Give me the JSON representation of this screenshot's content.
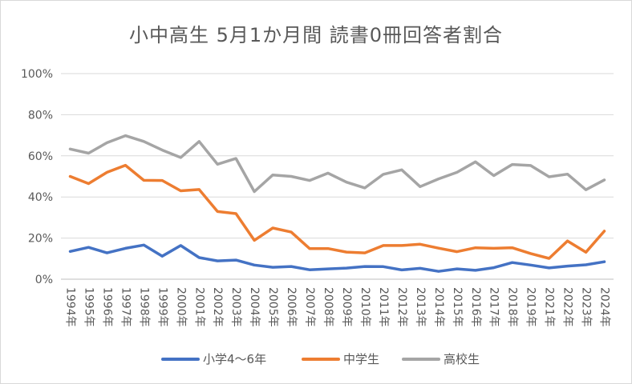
{
  "chart_data": {
    "type": "line",
    "title": "小中高生 5月1か月間 読書0冊回答者割合",
    "xlabel": "",
    "ylabel": "",
    "ylim": [
      0,
      100
    ],
    "y_ticks": [
      "0%",
      "20%",
      "40%",
      "60%",
      "80%",
      "100%"
    ],
    "y_tick_values": [
      0,
      20,
      40,
      60,
      80,
      100
    ],
    "grid": true,
    "legend_position": "bottom",
    "categories": [
      "1994年",
      "1995年",
      "1996年",
      "1997年",
      "1998年",
      "1999年",
      "2000年",
      "2001年",
      "2002年",
      "2003年",
      "2004年",
      "2005年",
      "2006年",
      "2007年",
      "2008年",
      "2009年",
      "2010年",
      "2011年",
      "2012年",
      "2013年",
      "2014年",
      "2015年",
      "2016年",
      "2017年",
      "2018年",
      "2019年",
      "2021年",
      "2022年",
      "2023年",
      "2024年"
    ],
    "series": [
      {
        "name": "小学4～6年",
        "color": "#4472c4",
        "values": [
          13.5,
          15.5,
          12.8,
          15.0,
          16.6,
          11.2,
          16.4,
          10.5,
          8.9,
          9.3,
          6.9,
          5.8,
          6.2,
          4.6,
          5.0,
          5.4,
          6.2,
          6.1,
          4.5,
          5.3,
          3.8,
          5.0,
          4.3,
          5.6,
          8.1,
          6.9,
          5.5,
          6.4,
          7.0,
          8.5
        ]
      },
      {
        "name": "中学生",
        "color": "#ed7d31",
        "values": [
          50.0,
          46.5,
          52.0,
          55.4,
          48.1,
          48.0,
          43.0,
          43.6,
          32.9,
          31.9,
          18.9,
          24.9,
          22.9,
          14.9,
          14.9,
          13.2,
          12.8,
          16.4,
          16.4,
          17.0,
          15.1,
          13.4,
          15.3,
          15.0,
          15.3,
          12.5,
          10.1,
          18.6,
          13.1,
          23.4
        ]
      },
      {
        "name": "高校生",
        "color": "#a5a5a5",
        "values": [
          63.3,
          61.3,
          66.4,
          69.8,
          67.0,
          62.8,
          59.2,
          67.0,
          55.9,
          58.7,
          42.6,
          50.7,
          50.0,
          48.0,
          51.6,
          47.2,
          44.4,
          51.0,
          53.2,
          45.0,
          48.8,
          52.0,
          57.1,
          50.4,
          55.8,
          55.3,
          49.8,
          51.1,
          43.5,
          48.3
        ]
      }
    ]
  }
}
